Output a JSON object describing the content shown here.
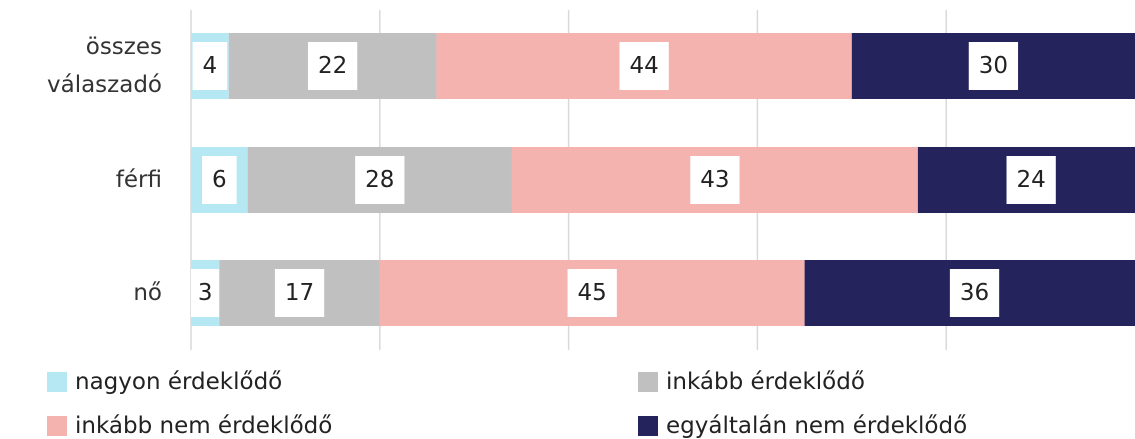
{
  "chart_data": {
    "type": "stacked-bar-horizontal",
    "categories": [
      "összes válaszadó",
      "férfi",
      "nő"
    ],
    "series": [
      {
        "name": "nagyon érdeklődő",
        "color": "#b5e8f2",
        "values": [
          4,
          6,
          3
        ]
      },
      {
        "name": "inkább érdeklődő",
        "color": "#c0c0c0",
        "values": [
          22,
          28,
          17
        ]
      },
      {
        "name": "inkább nem érdeklődő",
        "color": "#f5b3b0",
        "values": [
          44,
          43,
          45
        ]
      },
      {
        "name": "egyáltalán nem érdeklődő",
        "color": "#25235b",
        "values": [
          30,
          24,
          36
        ]
      }
    ],
    "xlim": [
      0,
      100
    ],
    "xticks": [
      0,
      20,
      40,
      60,
      80
    ],
    "grid": true
  }
}
